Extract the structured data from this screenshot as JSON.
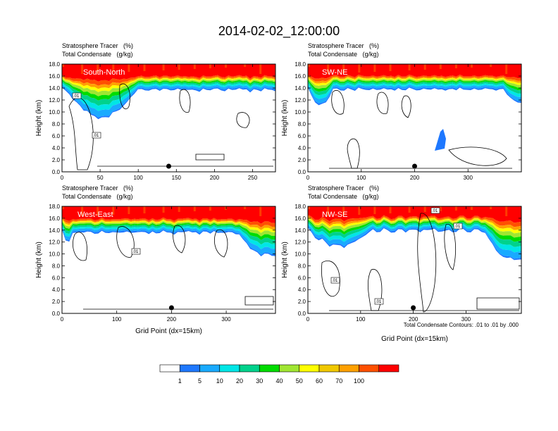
{
  "figure": {
    "title": "2014-02-02_12:00:00",
    "contour_note": "Total Condensate Contours: .01 to .01 by .000",
    "colorbar": {
      "labels": [
        "1",
        "5",
        "10",
        "20",
        "30",
        "40",
        "50",
        "60",
        "70",
        "100"
      ],
      "colors": [
        "#ffffff",
        "#1e78ff",
        "#19aaff",
        "#00e6e6",
        "#00d28c",
        "#00dc00",
        "#a0e632",
        "#ffff00",
        "#f0c800",
        "#ffa000",
        "#ff5000",
        "#ff0000"
      ]
    }
  },
  "chart_data": [
    {
      "type": "contour",
      "panel_label": "South-North",
      "line1": "Stratosphere Tracer   (%)",
      "line2": "Total Condensate   (g/kg)",
      "ylabel": "Height (km)",
      "xlabel": "",
      "xlim": [
        0,
        280
      ],
      "ylim": [
        0,
        18
      ],
      "xticks": [
        "0",
        "50",
        "100",
        "150",
        "200",
        "250"
      ],
      "yticks": [
        "0.0",
        "2.0",
        "4.0",
        "6.0",
        "8.0",
        "10.0",
        "12.0",
        "14.0",
        "16.0",
        "18.0"
      ],
      "contour_labels": [
        ".01",
        ".01"
      ],
      "marker_x": 140
    },
    {
      "type": "contour",
      "panel_label": "SW-NE",
      "line1": "Stratosphere Tracer   (%)",
      "line2": "Total Condensate   (g/kg)",
      "ylabel": "Height (km)",
      "xlabel": "",
      "xlim": [
        0,
        400
      ],
      "ylim": [
        0,
        18
      ],
      "xticks": [
        "0",
        "100",
        "200",
        "300"
      ],
      "yticks": [
        "0.0",
        "2.0",
        "4.0",
        "6.0",
        "8.0",
        "10.0",
        "12.0",
        "14.0",
        "16.0",
        "18.0"
      ],
      "contour_labels": [],
      "marker_x": 200
    },
    {
      "type": "contour",
      "panel_label": "West-East",
      "line1": "Stratosphere Tracer   (%)",
      "line2": "Total Condensate   (g/kg)",
      "ylabel": "Height (km)",
      "xlabel": "Grid Point (dx=15km)",
      "xlim": [
        0,
        390
      ],
      "ylim": [
        0,
        18
      ],
      "xticks": [
        "0",
        "100",
        "200",
        "300"
      ],
      "yticks": [
        "0.0",
        "2.0",
        "4.0",
        "6.0",
        "8.0",
        "10.0",
        "12.0",
        "14.0",
        "16.0",
        "18.0"
      ],
      "contour_labels": [
        ".01"
      ],
      "marker_x": 200
    },
    {
      "type": "contour",
      "panel_label": "NW-SE",
      "line1": "Stratosphere Tracer   (%)",
      "line2": "Total Condensate   (g/kg)",
      "ylabel": "Height (km)",
      "xlabel": "Grid Point (dx=15km)",
      "xlim": [
        0,
        405
      ],
      "ylim": [
        0,
        18
      ],
      "xticks": [
        "0",
        "100",
        "200",
        "300"
      ],
      "yticks": [
        "0.0",
        "2.0",
        "4.0",
        "6.0",
        "8.0",
        "10.0",
        "12.0",
        "14.0",
        "16.0",
        "18.0"
      ],
      "contour_labels": [
        ".01",
        ".01",
        ".01",
        ".01"
      ],
      "marker_x": 200
    }
  ]
}
